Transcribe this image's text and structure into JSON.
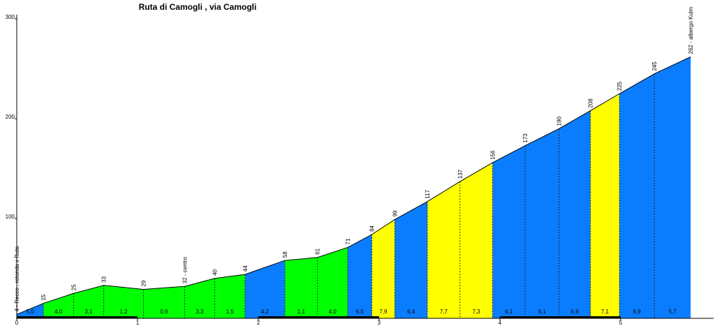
{
  "chart_data": {
    "type": "elevation-profile",
    "title": "Ruta di Camogli , via Camogli",
    "x": [
      0,
      0.22,
      0.47,
      0.72,
      1.05,
      1.39,
      1.64,
      1.89,
      2.22,
      2.49,
      2.74,
      2.94,
      3.13,
      3.4,
      3.67,
      3.94,
      4.21,
      4.49,
      4.75,
      4.99,
      5.28,
      5.58
    ],
    "values": [
      4,
      15,
      25,
      33,
      29,
      32,
      40,
      44,
      58,
      61,
      71,
      84,
      99,
      117,
      137,
      156,
      173,
      190,
      208,
      225,
      245,
      262
    ],
    "value_labels": [
      "4 - Recco , rotonda x Ruta",
      "15",
      "25",
      "33",
      "29",
      "32 - centro",
      "40",
      "44",
      "58",
      "61",
      "71",
      "84",
      "99",
      "117",
      "137",
      "156",
      "173",
      "190",
      "208",
      "225",
      "245",
      "262 - albergo Kulm"
    ],
    "grade_labels": [
      "5,0",
      "4,0",
      "3,1",
      "1,2",
      "0,9",
      "3,3",
      "1,5",
      "4,2",
      "1,1",
      "4,0",
      "6,5",
      "7,9",
      "6,4",
      "7,7",
      "7,3",
      "6,1",
      "6,1",
      "6,9",
      "7,1",
      "6,9",
      "5,7"
    ],
    "segment_colors": [
      "#0a7dff",
      "#00ff00",
      "#00ff00",
      "#00ff00",
      "#00ff00",
      "#00ff00",
      "#00ff00",
      "#0a7dff",
      "#00ff00",
      "#00ff00",
      "#0a7dff",
      "#ffff00",
      "#0a7dff",
      "#ffff00",
      "#ffff00",
      "#0a7dff",
      "#0a7dff",
      "#0a7dff",
      "#ffff00",
      "#0a7dff",
      "#0a7dff"
    ],
    "xlim": [
      0,
      5.77
    ],
    "xticks": [
      0,
      1,
      2,
      3,
      4,
      5
    ],
    "ylim": [
      0,
      300
    ],
    "yticks": [
      100,
      200,
      300
    ]
  }
}
